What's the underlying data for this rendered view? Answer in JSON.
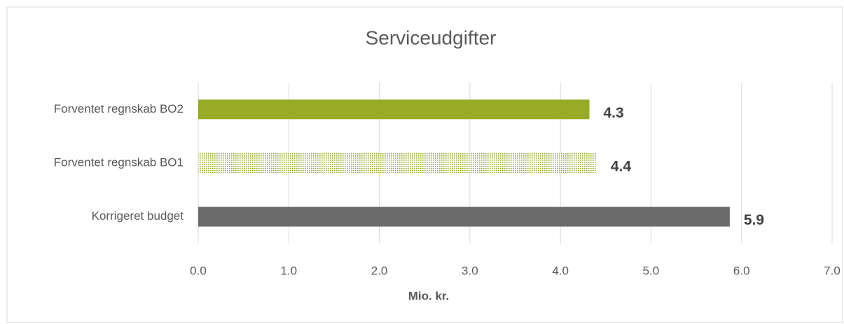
{
  "chart_data": {
    "type": "hbar",
    "title": "Serviceudgifter",
    "categories": [
      "Forventet regnskab BO2",
      "Forventet regnskab BO1",
      "Korrigeret budget"
    ],
    "values": [
      4.32,
      4.4,
      5.87
    ],
    "value_labels": [
      "4.3",
      "4.4",
      "5.9"
    ],
    "colors": [
      "#97ab26",
      "#b5c96a",
      "#6b6b6b"
    ],
    "fill_styles": [
      "solid",
      "dotted",
      "solid"
    ],
    "xlabel": "Mio. kr.",
    "xlim": [
      0,
      7
    ],
    "xticks": [
      {
        "value": 0,
        "label": "0.0"
      },
      {
        "value": 1,
        "label": "1.0"
      },
      {
        "value": 2,
        "label": "2.0"
      },
      {
        "value": 3,
        "label": "3.0"
      },
      {
        "value": 4,
        "label": "4.0"
      },
      {
        "value": 5,
        "label": "5.0"
      },
      {
        "value": 6,
        "label": "6.0"
      },
      {
        "value": 7,
        "label": "7.0"
      }
    ],
    "grid": true
  }
}
